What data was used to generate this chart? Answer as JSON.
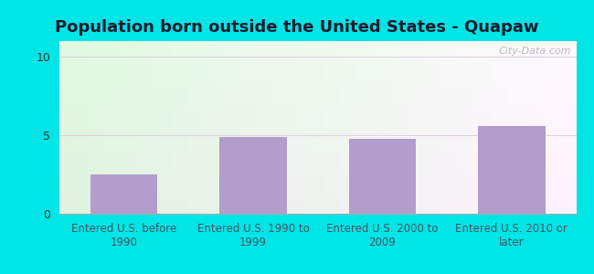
{
  "title": "Population born outside the United States - Quapaw",
  "categories": [
    "Entered U.S. before\n1990",
    "Entered U.S. 1990 to\n1999",
    "Entered U.S. 2000 to\n2009",
    "Entered U.S. 2010 or\nlater"
  ],
  "values": [
    2.5,
    4.9,
    4.8,
    5.6
  ],
  "bar_color": "#b39dcc",
  "background_outer": "#00e5e5",
  "ylim": [
    0,
    11
  ],
  "yticks": [
    0,
    5,
    10
  ],
  "grid_color": "#ddccdd",
  "watermark": "City-Data.com",
  "title_fontsize": 13,
  "tick_fontsize": 9,
  "label_fontsize": 8.5,
  "title_color": "#1a1a2e"
}
